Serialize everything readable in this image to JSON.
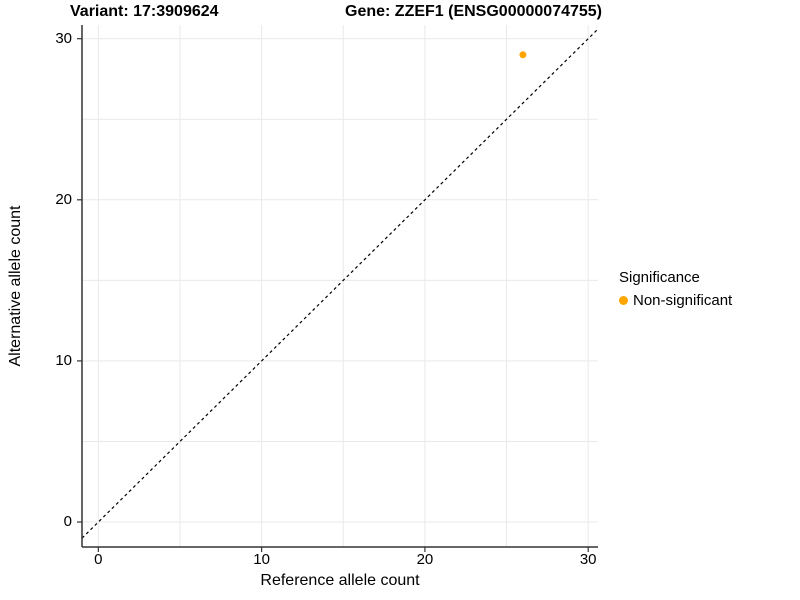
{
  "chart_data": {
    "type": "scatter",
    "titles": {
      "left": "Variant: 17:3909624",
      "right": "Gene: ZZEF1 (ENSG00000074755)"
    },
    "xlabel": "Reference allele count",
    "ylabel": "Alternative allele count",
    "xlim": [
      -1,
      30.6
    ],
    "ylim": [
      -1.55,
      30.85
    ],
    "xticks": [
      0,
      10,
      20,
      30
    ],
    "yticks": [
      0,
      10,
      20,
      30
    ],
    "grid_step": 5,
    "grid_on": true,
    "points": [
      {
        "x": 26,
        "y": 29,
        "series": "Non-significant"
      }
    ],
    "abline": {
      "slope": 1,
      "intercept": 0,
      "style": "dashed"
    },
    "legend": {
      "title": "Significance",
      "position": "right",
      "entries": [
        {
          "label": "Non-significant",
          "color": "#FFA500"
        }
      ]
    },
    "colors": {
      "point": "#FFA500",
      "grid": "#E9E9E9",
      "axis": "#333333",
      "abline": "#000000",
      "background": "#FFFFFF"
    }
  }
}
